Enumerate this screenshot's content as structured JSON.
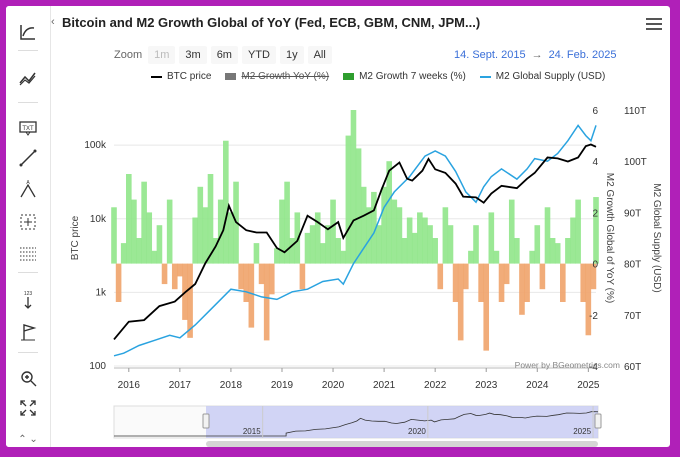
{
  "header": {
    "title": "Bitcoin and M2 Growth Global of YoY (Fed, ECB, GBM, CNM, JPM...)"
  },
  "zoom": {
    "label": "Zoom",
    "buttons": [
      "1m",
      "3m",
      "6m",
      "YTD",
      "1y",
      "All"
    ]
  },
  "range": {
    "from": "14. Sept. 2015",
    "arrow": "→",
    "to": "24. Feb. 2025"
  },
  "credit": "Power by BGeometrics.com",
  "toolbar": [
    "trend-line-icon",
    "moving-average-icon",
    "text-annotation-icon",
    "line-draw-icon",
    "fibonacci-icon",
    "crosshair-icon",
    "measure-icon",
    "vertical-counter-icon",
    "flag-icon",
    "zoom-in-icon",
    "fullscreen-icon"
  ],
  "colors": {
    "btc": "#000000",
    "m2yoy_pos": "#90e58a",
    "m2yoy_neg": "#f0a36a",
    "m2_7w": "#2e9e2e",
    "m2_supply": "#2aa3e0",
    "accent": "#3a6fd8",
    "frame": "#b020b8"
  },
  "chart_data": {
    "type": "line",
    "title": "Bitcoin and M2 Growth Global of YoY (Fed, ECB, GBM, CNM, JPM...)",
    "x_range": [
      "2015-09-14",
      "2025-02-24"
    ],
    "x_ticks": [
      "2016",
      "2017",
      "2018",
      "2019",
      "2020",
      "2021",
      "2022",
      "2023",
      "2024",
      "2025"
    ],
    "navigator_ticks": [
      "2015",
      "2020",
      "2025"
    ],
    "legend": [
      {
        "name": "BTC price",
        "visible": true
      },
      {
        "name": "M2 Growth YoY (%)",
        "visible": false
      },
      {
        "name": "M2 Growth 7 weeks (%)",
        "visible": true
      },
      {
        "name": "M2 Global Supply (USD)",
        "visible": true
      }
    ],
    "axes": {
      "btc": {
        "label": "BTC price",
        "scale": "log",
        "ticks": [
          "100",
          "1k",
          "10k",
          "100k"
        ],
        "range": [
          100,
          300000
        ]
      },
      "m2_growth": {
        "label": "M2 Growth Global of YoY (%)",
        "ticks": [
          "-4",
          "-2",
          "0",
          "2",
          "4",
          "6"
        ],
        "range": [
          -4,
          6
        ]
      },
      "m2_supply": {
        "label": "M2 Global Supply (USD)",
        "ticks": [
          "60T",
          "70T",
          "80T",
          "90T",
          "100T",
          "110T"
        ],
        "range": [
          60,
          110
        ]
      }
    },
    "series": [
      {
        "name": "BTC price",
        "axis": "btc",
        "x": [
          2015.71,
          2016.0,
          2016.3,
          2016.6,
          2016.9,
          2017.1,
          2017.3,
          2017.5,
          2017.7,
          2017.85,
          2017.96,
          2018.1,
          2018.3,
          2018.5,
          2018.7,
          2018.9,
          2019.05,
          2019.3,
          2019.5,
          2019.7,
          2019.9,
          2020.1,
          2020.2,
          2020.4,
          2020.6,
          2020.8,
          2020.95,
          2021.1,
          2021.3,
          2021.45,
          2021.55,
          2021.75,
          2021.87,
          2022.0,
          2022.2,
          2022.4,
          2022.55,
          2022.8,
          2022.95,
          2023.1,
          2023.3,
          2023.6,
          2023.8,
          2023.95,
          2024.2,
          2024.4,
          2024.6,
          2024.8,
          2024.95,
          2025.05,
          2025.15
        ],
        "y": [
          230,
          400,
          420,
          650,
          750,
          1000,
          1300,
          2500,
          4200,
          7000,
          15000,
          9000,
          7000,
          6500,
          6500,
          4000,
          3500,
          5000,
          11000,
          9000,
          7200,
          9000,
          5500,
          9500,
          11000,
          13000,
          25000,
          45000,
          58000,
          35000,
          33000,
          45000,
          65000,
          47000,
          42000,
          30000,
          20000,
          19500,
          16500,
          22000,
          28000,
          26000,
          35000,
          42000,
          68000,
          66000,
          60000,
          68000,
          97000,
          102000,
          95000
        ]
      },
      {
        "name": "M2 Global Supply (USD)",
        "axis": "m2_supply",
        "x": [
          2015.71,
          2015.9,
          2016.2,
          2016.5,
          2016.8,
          2017.0,
          2017.3,
          2017.6,
          2018.0,
          2018.3,
          2018.6,
          2018.9,
          2019.2,
          2019.5,
          2019.8,
          2020.1,
          2020.2,
          2020.4,
          2020.6,
          2020.8,
          2021.0,
          2021.2,
          2021.5,
          2021.8,
          2022.0,
          2022.2,
          2022.4,
          2022.6,
          2022.8,
          2022.95,
          2023.1,
          2023.3,
          2023.6,
          2023.8,
          2023.95,
          2024.2,
          2024.4,
          2024.6,
          2024.8,
          2024.95,
          2025.05,
          2025.15
        ],
        "y": [
          62,
          62.5,
          64,
          65,
          66,
          65.5,
          68,
          71,
          75,
          74.5,
          73.5,
          73,
          74.5,
          75,
          76.5,
          77,
          76,
          80,
          83,
          86,
          91,
          94,
          97,
          101,
          102,
          101,
          98,
          94,
          92,
          95,
          97,
          98.5,
          96.5,
          98.5,
          100.5,
          100,
          101.5,
          104,
          107,
          105,
          104,
          107
        ]
      },
      {
        "name": "M2 Growth 7 weeks (%)",
        "axis": "m2_growth",
        "x": [
          2015.71,
          2015.8,
          2015.9,
          2016.0,
          2016.1,
          2016.2,
          2016.3,
          2016.4,
          2016.5,
          2016.6,
          2016.7,
          2016.8,
          2016.9,
          2017.0,
          2017.1,
          2017.2,
          2017.3,
          2017.4,
          2017.5,
          2017.6,
          2017.7,
          2017.8,
          2017.9,
          2018.0,
          2018.1,
          2018.2,
          2018.3,
          2018.4,
          2018.5,
          2018.6,
          2018.7,
          2018.8,
          2018.9,
          2019.0,
          2019.1,
          2019.2,
          2019.3,
          2019.4,
          2019.5,
          2019.6,
          2019.7,
          2019.8,
          2019.9,
          2020.0,
          2020.1,
          2020.2,
          2020.3,
          2020.4,
          2020.5,
          2020.6,
          2020.7,
          2020.8,
          2020.9,
          2021.0,
          2021.1,
          2021.2,
          2021.3,
          2021.4,
          2021.5,
          2021.6,
          2021.7,
          2021.8,
          2021.9,
          2022.0,
          2022.1,
          2022.2,
          2022.3,
          2022.4,
          2022.5,
          2022.6,
          2022.7,
          2022.8,
          2022.9,
          2023.0,
          2023.1,
          2023.2,
          2023.3,
          2023.4,
          2023.5,
          2023.6,
          2023.7,
          2023.8,
          2023.9,
          2024.0,
          2024.1,
          2024.2,
          2024.3,
          2024.4,
          2024.5,
          2024.6,
          2024.7,
          2024.8,
          2024.9,
          2025.0,
          2025.1,
          2025.15
        ],
        "y": [
          2.2,
          -1.5,
          0.8,
          3.5,
          2.5,
          1.0,
          3.2,
          2.0,
          0.5,
          1.5,
          -0.8,
          2.5,
          -1.0,
          -0.5,
          -2.2,
          -2.9,
          1.8,
          3.0,
          2.2,
          3.5,
          1.0,
          2.5,
          4.8,
          2.0,
          3.2,
          -1.0,
          -1.5,
          -2.5,
          0.8,
          -0.8,
          -3.0,
          -1.2,
          0.6,
          2.5,
          3.2,
          1.0,
          2.0,
          -1.0,
          1.2,
          1.5,
          2.0,
          0.8,
          1.5,
          2.5,
          1.0,
          0.5,
          5.0,
          6.0,
          4.5,
          3.0,
          2.2,
          2.8,
          1.5,
          3.0,
          4.0,
          2.5,
          2.2,
          1.0,
          1.8,
          1.2,
          2.0,
          1.8,
          1.5,
          1.0,
          -1.0,
          2.2,
          1.5,
          -1.5,
          -3.0,
          -1.0,
          0.5,
          1.5,
          -1.5,
          -3.4,
          2.0,
          0.5,
          -1.5,
          -0.8,
          2.5,
          1.0,
          -2.0,
          -1.5,
          0.5,
          1.5,
          -1.0,
          2.2,
          1.0,
          0.8,
          -1.5,
          1.0,
          1.8,
          2.5,
          -1.5,
          -2.8,
          -1.0,
          2.6
        ]
      }
    ]
  }
}
